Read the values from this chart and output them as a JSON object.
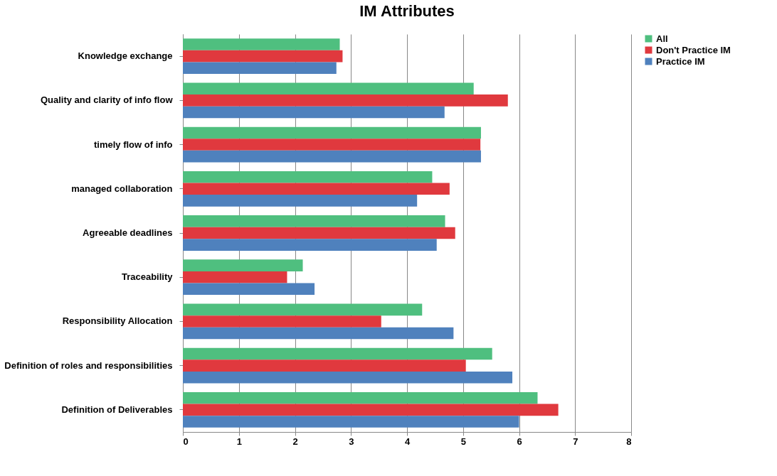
{
  "chart_data": {
    "type": "bar",
    "title": "IM Attributes",
    "orientation": "horizontal",
    "categories": [
      "Knowledge exchange",
      "Quality and clarity of info flow",
      "timely flow of info",
      "managed collaboration",
      "Agreeable deadlines",
      "Traceability",
      "Responsibility Allocation",
      "Definition of roles and responsibilities",
      "Definition of Deliverables"
    ],
    "series": [
      {
        "name": "All",
        "color": "#4fbf7f",
        "values": [
          2.8,
          5.19,
          5.32,
          4.45,
          4.68,
          2.14,
          4.27,
          5.52,
          6.33
        ]
      },
      {
        "name": "Don't Practice IM",
        "color": "#e0393e",
        "values": [
          2.85,
          5.8,
          5.31,
          4.76,
          4.86,
          1.86,
          3.54,
          5.05,
          6.7
        ]
      },
      {
        "name": "Practice IM",
        "color": "#4f81bd",
        "values": [
          2.74,
          4.67,
          5.32,
          4.18,
          4.53,
          2.35,
          4.83,
          5.88,
          6.0
        ]
      }
    ],
    "xlim": [
      0,
      8
    ],
    "xticks": [
      0,
      1,
      2,
      3,
      4,
      5,
      6,
      7,
      8
    ],
    "grid": "x",
    "legend": "right"
  }
}
